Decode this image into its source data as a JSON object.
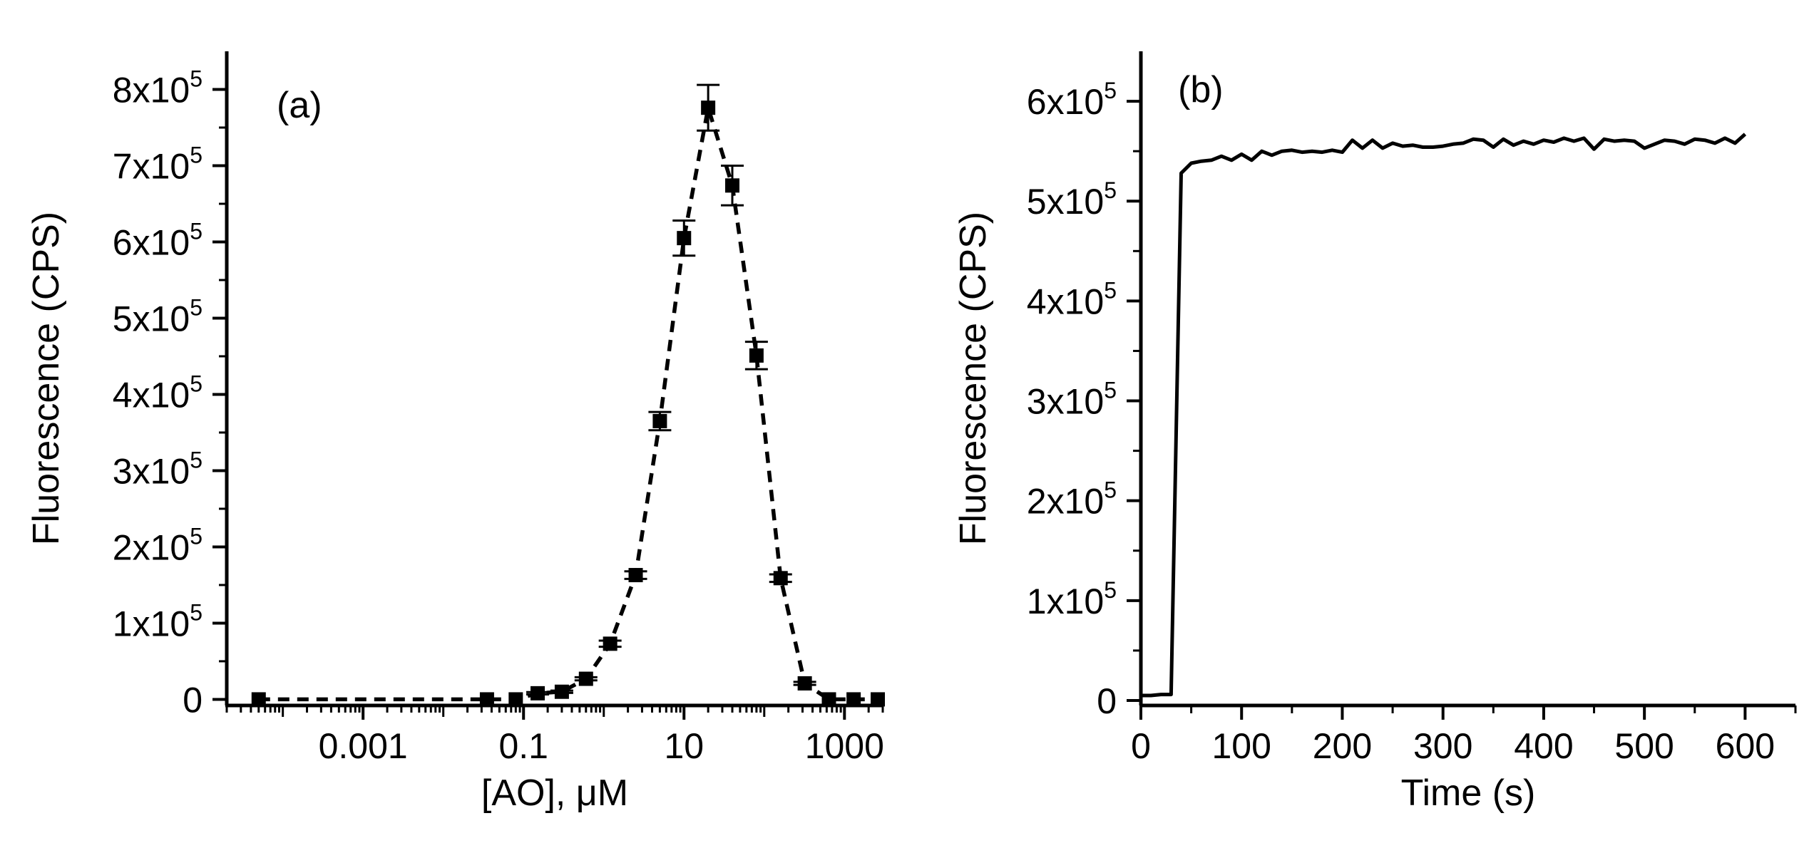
{
  "chart_data": [
    {
      "type": "scatter",
      "panel_label": "(a)",
      "xlabel": "[AO], μM",
      "ylabel": "Fluorescence (CPS)",
      "xscale": "log",
      "xlim": [
        2e-05,
        3000
      ],
      "ylim": [
        -8000,
        850000
      ],
      "grid": false,
      "legend": "none",
      "x_ticks": [
        {
          "value": 0.001,
          "label": "0.001"
        },
        {
          "value": 0.1,
          "label": "0.1"
        },
        {
          "value": 10,
          "label": "10"
        },
        {
          "value": 1000,
          "label": "1000"
        }
      ],
      "y_ticks": [
        {
          "value": 0,
          "label": "0"
        },
        {
          "value": 100000,
          "label": "1x10",
          "exp": "5"
        },
        {
          "value": 200000,
          "label": "2x10",
          "exp": "5"
        },
        {
          "value": 300000,
          "label": "3x10",
          "exp": "5"
        },
        {
          "value": 400000,
          "label": "4x10",
          "exp": "5"
        },
        {
          "value": 500000,
          "label": "5x10",
          "exp": "5"
        },
        {
          "value": 600000,
          "label": "6x10",
          "exp": "5"
        },
        {
          "value": 700000,
          "label": "7x10",
          "exp": "5"
        },
        {
          "value": 800000,
          "label": "8x10",
          "exp": "5"
        }
      ],
      "series": [
        {
          "marker": "filled-square",
          "fit_line": "dashed",
          "points": [
            {
              "x": 5e-05,
              "y": 0,
              "err": 0
            },
            {
              "x": 0.035,
              "y": 0,
              "err": 0
            },
            {
              "x": 0.08,
              "y": 0,
              "err": 0
            },
            {
              "x": 0.15,
              "y": 8000,
              "err": 1500
            },
            {
              "x": 0.3,
              "y": 10000,
              "err": 1500
            },
            {
              "x": 0.6,
              "y": 27000,
              "err": 2000
            },
            {
              "x": 1.2,
              "y": 73000,
              "err": 4000
            },
            {
              "x": 2.5,
              "y": 163000,
              "err": 5000
            },
            {
              "x": 5,
              "y": 365000,
              "err": 12000
            },
            {
              "x": 10,
              "y": 605000,
              "err": 23000
            },
            {
              "x": 20,
              "y": 776000,
              "err": 30000
            },
            {
              "x": 40,
              "y": 674000,
              "err": 26000
            },
            {
              "x": 80,
              "y": 451000,
              "err": 18000
            },
            {
              "x": 160,
              "y": 159000,
              "err": 5000
            },
            {
              "x": 320,
              "y": 21000,
              "err": 2000
            },
            {
              "x": 640,
              "y": 0,
              "err": 0
            },
            {
              "x": 1300,
              "y": 0,
              "err": 0
            },
            {
              "x": 2600,
              "y": 0,
              "err": 0
            }
          ]
        }
      ]
    },
    {
      "type": "line",
      "panel_label": "(b)",
      "xlabel": "Time (s)",
      "ylabel": "Fluorescence (CPS)",
      "xlim": [
        0,
        650
      ],
      "ylim": [
        -5000,
        650000
      ],
      "grid": false,
      "legend": "none",
      "x_ticks": [
        {
          "value": 0,
          "label": "0"
        },
        {
          "value": 100,
          "label": "100"
        },
        {
          "value": 200,
          "label": "200"
        },
        {
          "value": 300,
          "label": "300"
        },
        {
          "value": 400,
          "label": "400"
        },
        {
          "value": 500,
          "label": "500"
        },
        {
          "value": 600,
          "label": "600"
        }
      ],
      "y_ticks": [
        {
          "value": 0,
          "label": "0"
        },
        {
          "value": 100000,
          "label": "1x10",
          "exp": "5"
        },
        {
          "value": 200000,
          "label": "2x10",
          "exp": "5"
        },
        {
          "value": 300000,
          "label": "3x10",
          "exp": "5"
        },
        {
          "value": 400000,
          "label": "4x10",
          "exp": "5"
        },
        {
          "value": 500000,
          "label": "5x10",
          "exp": "5"
        },
        {
          "value": 600000,
          "label": "6x10",
          "exp": "5"
        }
      ],
      "series": [
        {
          "x": [
            0,
            10,
            20,
            30,
            40,
            50,
            60,
            70,
            80,
            90,
            100,
            110,
            120,
            130,
            140,
            150,
            160,
            170,
            180,
            190,
            200,
            210,
            220,
            230,
            240,
            250,
            260,
            270,
            280,
            290,
            300,
            310,
            320,
            330,
            340,
            350,
            360,
            370,
            380,
            390,
            400,
            410,
            420,
            430,
            440,
            450,
            460,
            470,
            480,
            490,
            500,
            510,
            520,
            530,
            540,
            550,
            560,
            570,
            580,
            590,
            600
          ],
          "y": [
            5000,
            5000,
            6000,
            6000,
            528000,
            538000,
            540000,
            541000,
            545000,
            541000,
            547000,
            541000,
            550000,
            546000,
            550000,
            551000,
            549000,
            550000,
            549000,
            551000,
            549000,
            561000,
            553000,
            561000,
            553000,
            558000,
            555000,
            556000,
            554000,
            554000,
            555000,
            557000,
            558000,
            562000,
            561000,
            554000,
            562000,
            556000,
            560000,
            557000,
            561000,
            559000,
            563000,
            560000,
            563000,
            552000,
            562000,
            560000,
            561000,
            560000,
            553000,
            557000,
            561000,
            560000,
            557000,
            562000,
            561000,
            558000,
            563000,
            558000,
            567000
          ]
        }
      ]
    }
  ]
}
